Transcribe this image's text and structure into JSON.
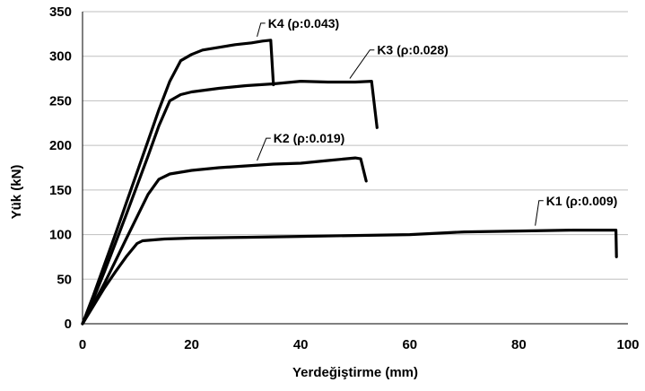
{
  "chart_data": {
    "type": "line",
    "title": "",
    "xlabel": "Yerdeğiştirme (mm)",
    "ylabel": "Yük (kN)",
    "xlim": [
      0,
      100
    ],
    "ylim": [
      0,
      350
    ],
    "xticks": [
      "0",
      "20",
      "40",
      "60",
      "80",
      "100"
    ],
    "yticks": [
      "0",
      "50",
      "100",
      "150",
      "200",
      "250",
      "300",
      "350"
    ],
    "grid": "horizontal",
    "legend": "none",
    "series": [
      {
        "name": "K1 (ρ:0.009)",
        "points": [
          [
            0,
            0
          ],
          [
            2,
            20
          ],
          [
            4,
            40
          ],
          [
            6,
            58
          ],
          [
            8,
            75
          ],
          [
            10,
            90
          ],
          [
            11,
            93
          ],
          [
            15,
            95
          ],
          [
            20,
            96
          ],
          [
            30,
            97
          ],
          [
            40,
            98
          ],
          [
            50,
            99
          ],
          [
            60,
            100
          ],
          [
            70,
            103
          ],
          [
            80,
            104
          ],
          [
            90,
            105
          ],
          [
            97.8,
            105
          ],
          [
            97.9,
            75
          ]
        ]
      },
      {
        "name": "K2 (ρ:0.019)",
        "points": [
          [
            0,
            0
          ],
          [
            2,
            22
          ],
          [
            4,
            45
          ],
          [
            6,
            70
          ],
          [
            8,
            95
          ],
          [
            10,
            120
          ],
          [
            12,
            145
          ],
          [
            14,
            162
          ],
          [
            16,
            168
          ],
          [
            20,
            172
          ],
          [
            25,
            175
          ],
          [
            30,
            177
          ],
          [
            35,
            179
          ],
          [
            40,
            180
          ],
          [
            45,
            183
          ],
          [
            50,
            186
          ],
          [
            51,
            185
          ],
          [
            52,
            160
          ]
        ]
      },
      {
        "name": "K3 (ρ:0.028)",
        "points": [
          [
            0,
            0
          ],
          [
            2,
            28
          ],
          [
            4,
            58
          ],
          [
            6,
            90
          ],
          [
            8,
            122
          ],
          [
            10,
            155
          ],
          [
            12,
            188
          ],
          [
            14,
            222
          ],
          [
            16,
            250
          ],
          [
            18,
            257
          ],
          [
            20,
            260
          ],
          [
            25,
            264
          ],
          [
            30,
            267
          ],
          [
            35,
            269
          ],
          [
            40,
            272
          ],
          [
            45,
            271
          ],
          [
            50,
            271
          ],
          [
            53,
            272
          ],
          [
            54,
            220
          ]
        ]
      },
      {
        "name": "K4 (ρ:0.043)",
        "points": [
          [
            0,
            0
          ],
          [
            2,
            32
          ],
          [
            4,
            66
          ],
          [
            6,
            100
          ],
          [
            8,
            135
          ],
          [
            10,
            170
          ],
          [
            12,
            205
          ],
          [
            14,
            240
          ],
          [
            16,
            272
          ],
          [
            18,
            295
          ],
          [
            20,
            302
          ],
          [
            22,
            307
          ],
          [
            25,
            310
          ],
          [
            28,
            313
          ],
          [
            31,
            315
          ],
          [
            33,
            317
          ],
          [
            34.5,
            318
          ],
          [
            35,
            268
          ]
        ]
      }
    ],
    "annotations": [
      {
        "text": "K1 (ρ:0.009)",
        "x": 85,
        "y": 133,
        "target_x": 83,
        "target_y": 110
      },
      {
        "text": "K2 (ρ:0.019)",
        "x": 35,
        "y": 203,
        "target_x": 32,
        "target_y": 183
      },
      {
        "text": "K3 (ρ:0.028)",
        "x": 54,
        "y": 302,
        "target_x": 49,
        "target_y": 275
      },
      {
        "text": "K4 (ρ:0.043)",
        "x": 34,
        "y": 332,
        "target_x": 32,
        "target_y": 322
      }
    ]
  }
}
